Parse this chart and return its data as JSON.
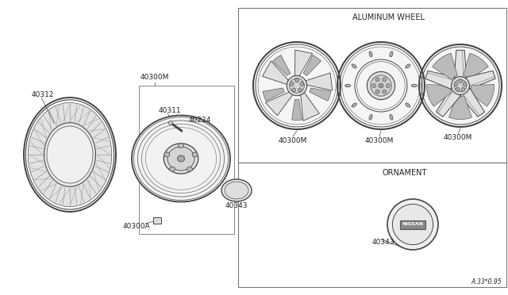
{
  "bg_color": "#ffffff",
  "line_color": "#444444",
  "thin_line": "#666666",
  "label_color": "#222222",
  "gray_fill": "#d8d8d8",
  "light_fill": "#ebebeb",
  "panel_border": "#777777",
  "aluminum_wheel_label": "ALUMINUM WHEEL",
  "ornament_label": "ORNAMENT",
  "diagram_note": "A:33*0.95",
  "label_fontsize": 6.5,
  "small_fontsize": 5.5,
  "section_fontsize": 7.0,
  "fig_w": 6.4,
  "fig_h": 3.72,
  "dpi": 100
}
